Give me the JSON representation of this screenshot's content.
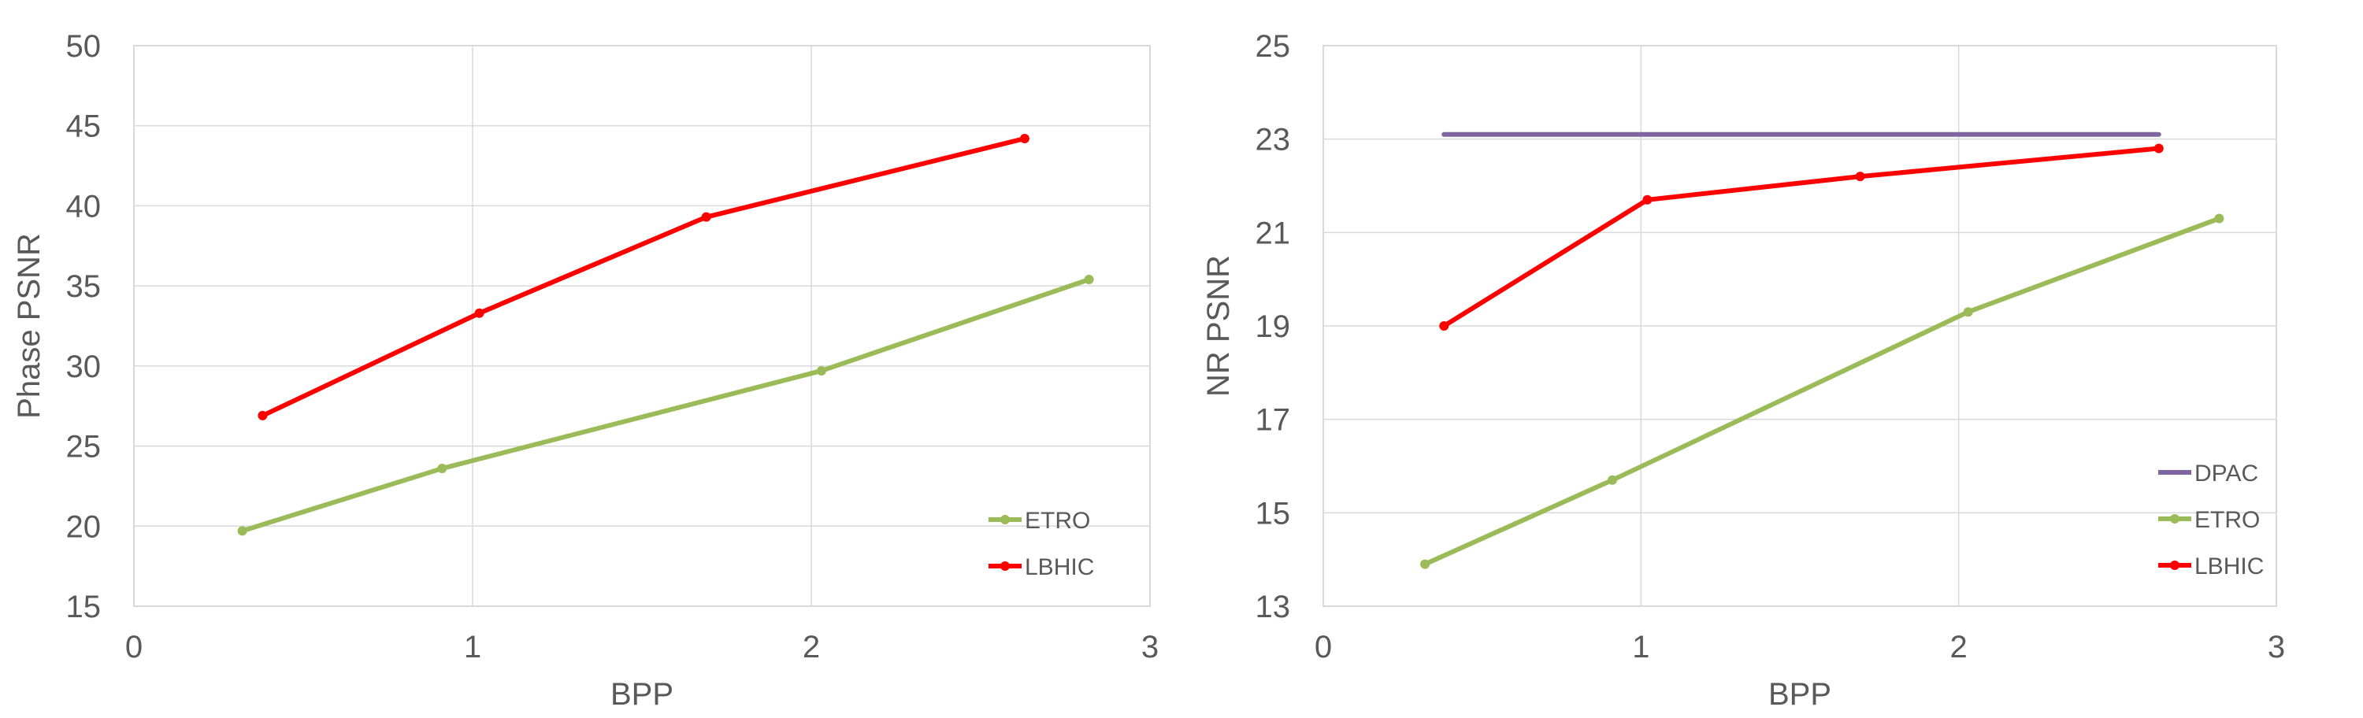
{
  "colors": {
    "etro": "#9BBB59",
    "lbhic": "#FF0000",
    "dpac": "#8064A2",
    "grid": "#D9D9D9",
    "text": "#595959"
  },
  "chart_data": [
    {
      "type": "line",
      "title": "",
      "xlabel": "BPP",
      "ylabel": "Phase PSNR",
      "xlim": [
        0,
        3
      ],
      "ylim": [
        15,
        50
      ],
      "xticks": [
        0,
        1,
        2,
        3
      ],
      "yticks": [
        15,
        20,
        25,
        30,
        35,
        40,
        45,
        50
      ],
      "grid": true,
      "legend": "bottom-right",
      "series": [
        {
          "name": "ETRO",
          "color": "#9BBB59",
          "markers": true,
          "x": [
            0.32,
            0.91,
            2.03,
            2.82
          ],
          "y": [
            19.7,
            23.6,
            29.7,
            35.4
          ]
        },
        {
          "name": "LBHIC",
          "color": "#FF0000",
          "markers": true,
          "x": [
            0.38,
            1.02,
            1.69,
            2.63
          ],
          "y": [
            26.9,
            33.3,
            39.3,
            44.2
          ]
        }
      ]
    },
    {
      "type": "line",
      "title": "",
      "xlabel": "BPP",
      "ylabel": "NR PSNR",
      "xlim": [
        0,
        3
      ],
      "ylim": [
        13,
        25
      ],
      "xticks": [
        0,
        1,
        2,
        3
      ],
      "yticks": [
        13,
        15,
        17,
        19,
        21,
        23,
        25
      ],
      "grid": true,
      "legend": "bottom-right",
      "series": [
        {
          "name": "DPAC",
          "color": "#8064A2",
          "markers": false,
          "x": [
            0.38,
            2.63
          ],
          "y": [
            23.1,
            23.1
          ]
        },
        {
          "name": "ETRO",
          "color": "#9BBB59",
          "markers": true,
          "x": [
            0.32,
            0.91,
            2.03,
            2.82
          ],
          "y": [
            13.9,
            15.7,
            19.3,
            21.3
          ]
        },
        {
          "name": "LBHIC",
          "color": "#FF0000",
          "markers": true,
          "x": [
            0.38,
            1.02,
            1.69,
            2.63
          ],
          "y": [
            19.0,
            21.7,
            22.2,
            22.8
          ]
        }
      ]
    }
  ]
}
